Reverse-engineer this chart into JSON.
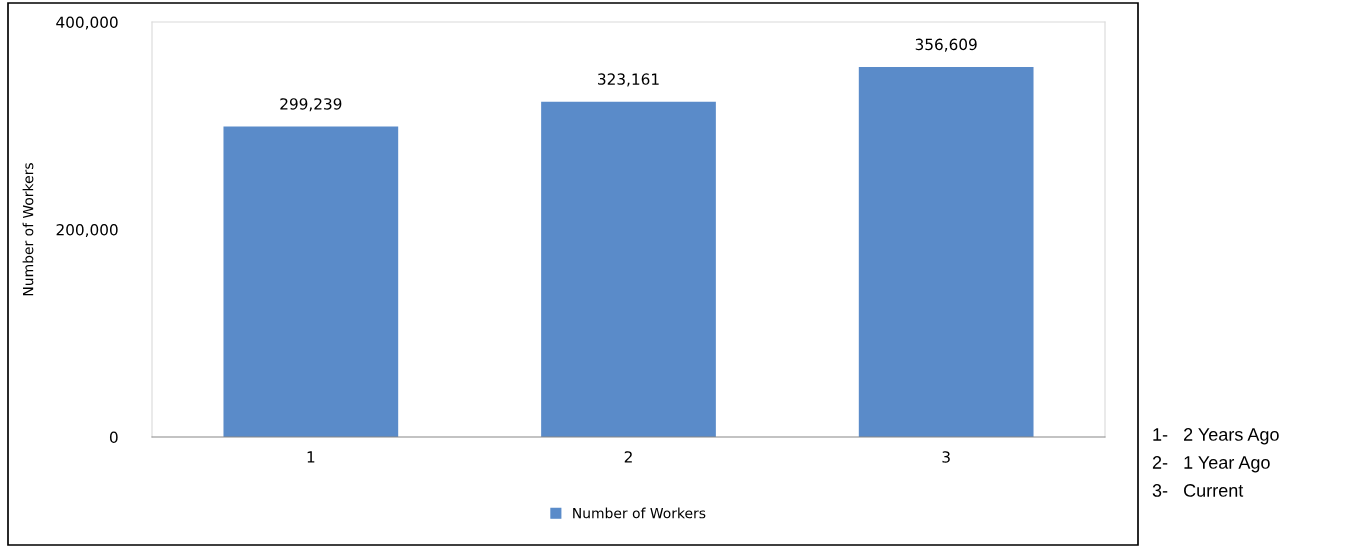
{
  "chart_data": {
    "type": "bar",
    "ylabel": "Number of Workers",
    "categories": [
      "1",
      "2",
      "3"
    ],
    "series": [
      {
        "name": "Number of Workers",
        "color": "#5a8bc9",
        "values": [
          299239,
          323161,
          356609
        ],
        "value_labels": [
          "299,239",
          "323,161",
          "356,609"
        ]
      }
    ],
    "ylim": [
      0,
      400000
    ],
    "yticks": [
      {
        "value": 0,
        "label": "0"
      },
      {
        "value": 200000,
        "label": "200,000"
      },
      {
        "value": 400000,
        "label": "400,000"
      }
    ],
    "grid": false,
    "legend": "bottom",
    "annotations": [
      "1-   2 Years Ago",
      "2-   1 Year Ago",
      "3-   Current"
    ]
  }
}
